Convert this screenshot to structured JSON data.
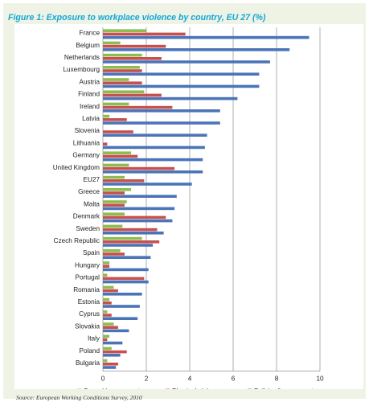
{
  "figure_title": "Figure 1: Exposure to workplace violence by country, EU 27 (%)",
  "source": "Source: European Working Conditions Survey, 2010",
  "colors": {
    "title": "#12a7d6",
    "frame_background": "#eff3e6",
    "sexual_harassment": "#8dbd4e",
    "physical_violence": "#c6504e",
    "bullying_harassment": "#4b74b8",
    "gridline": "#7a7a7a"
  },
  "chart_data": {
    "type": "bar",
    "orientation": "horizontal",
    "title": "Figure 1: Exposure to workplace violence by country, EU 27 (%)",
    "xlabel": "",
    "ylabel": "",
    "xlim": [
      0,
      10
    ],
    "xticks": [
      0,
      2,
      4,
      6,
      8,
      10
    ],
    "grid": true,
    "legend_position": "bottom",
    "categories": [
      "France",
      "Belgium",
      "Netherlands",
      "Luxembourg",
      "Austria",
      "Finland",
      "Ireland",
      "Latvia",
      "Slovenia",
      "Lithuania",
      "Germany",
      "United Kingdom",
      "EU27",
      "Greece",
      "Malta",
      "Denmark",
      "Sweden",
      "Czech Republic",
      "Spain",
      "Hungary",
      "Portugal",
      "Romania",
      "Estonia",
      "Cyprus",
      "Slovakia",
      "Italy",
      "Poland",
      "Bulgaria"
    ],
    "series": [
      {
        "name": "Sexual harassment",
        "color": "#8dbd4e",
        "values": [
          2.0,
          0.8,
          1.8,
          1.7,
          1.2,
          1.9,
          1.2,
          0.3,
          0.0,
          0.0,
          1.3,
          1.2,
          1.0,
          1.3,
          1.1,
          1.0,
          0.9,
          1.8,
          0.8,
          0.3,
          0.2,
          0.5,
          0.3,
          0.2,
          0.5,
          0.3,
          0.4,
          0.2
        ]
      },
      {
        "name": "Physical violence",
        "color": "#c6504e",
        "values": [
          3.8,
          2.9,
          2.7,
          1.8,
          1.8,
          2.7,
          3.2,
          1.1,
          1.4,
          0.2,
          1.6,
          3.3,
          1.9,
          1.0,
          1.0,
          2.9,
          2.5,
          2.6,
          1.0,
          0.3,
          1.9,
          0.7,
          0.4,
          0.4,
          0.7,
          0.2,
          1.1,
          0.7
        ]
      },
      {
        "name": "Bullying/harassment",
        "color": "#4b74b8",
        "values": [
          9.5,
          8.6,
          7.7,
          7.2,
          7.2,
          6.2,
          5.4,
          5.4,
          4.8,
          4.7,
          4.6,
          4.6,
          4.1,
          3.4,
          3.3,
          3.2,
          2.8,
          2.3,
          2.2,
          2.1,
          2.1,
          1.8,
          1.7,
          1.6,
          1.2,
          0.9,
          0.8,
          0.6
        ]
      }
    ]
  }
}
